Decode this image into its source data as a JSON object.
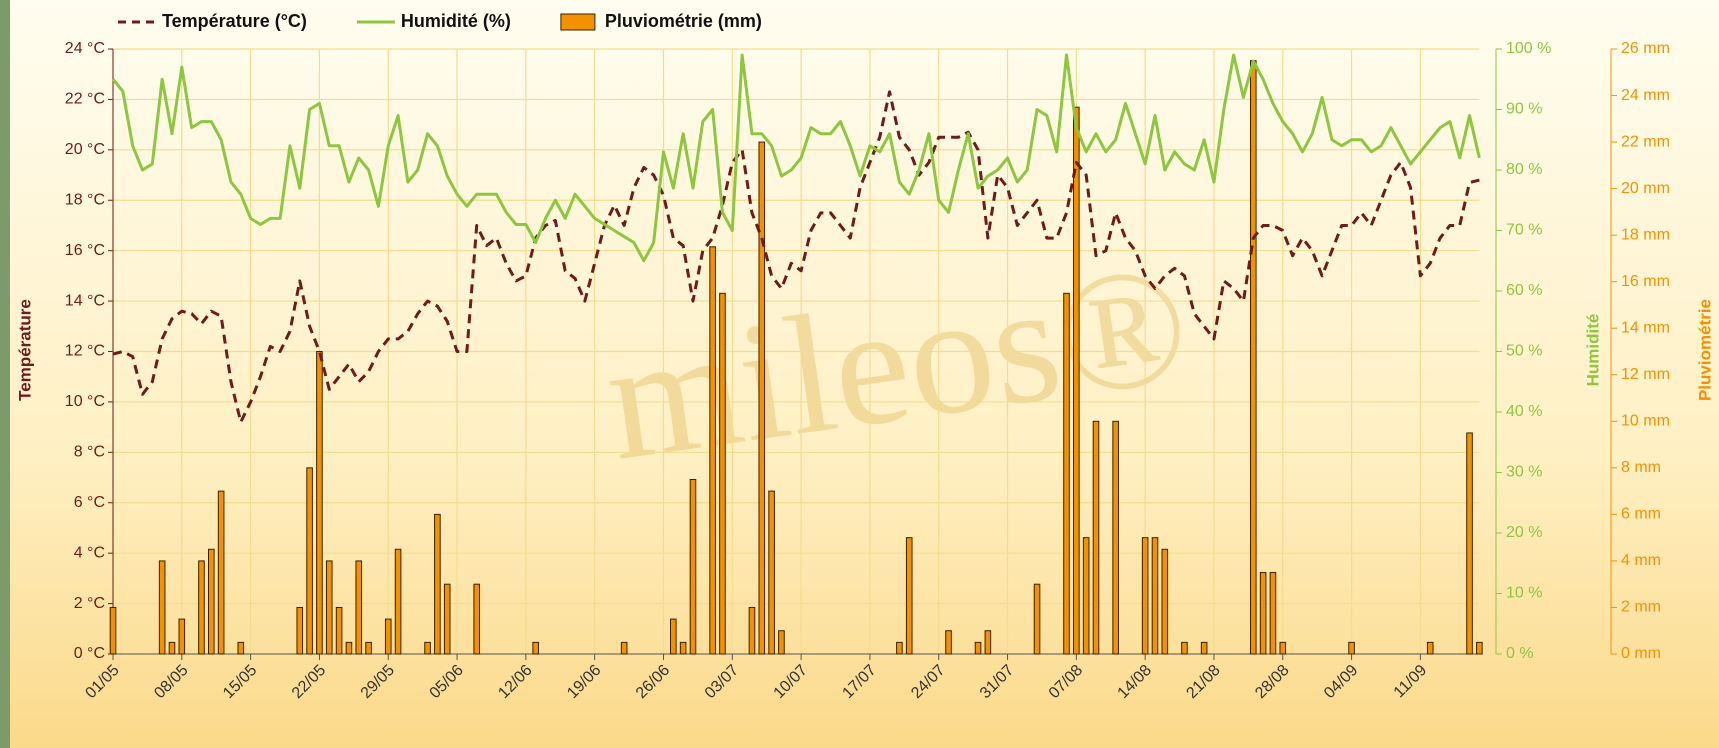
{
  "chart_data": {
    "type": "combo",
    "watermark": "mileos®",
    "ylabel": "Température",
    "y2label": "Humidité",
    "y3label": "Pluviométrie",
    "categories": [
      "01/05",
      null,
      null,
      null,
      null,
      null,
      null,
      "08/05",
      null,
      null,
      null,
      null,
      null,
      null,
      "15/05",
      null,
      null,
      null,
      null,
      null,
      null,
      "22/05",
      null,
      null,
      null,
      null,
      null,
      null,
      "29/05",
      null,
      null,
      null,
      null,
      null,
      null,
      "05/06",
      null,
      null,
      null,
      null,
      null,
      null,
      "12/06",
      null,
      null,
      null,
      null,
      null,
      null,
      "19/06",
      null,
      null,
      null,
      null,
      null,
      null,
      "26/06",
      null,
      null,
      null,
      null,
      null,
      null,
      "03/07",
      null,
      null,
      null,
      null,
      null,
      null,
      "10/07",
      null,
      null,
      null,
      null,
      null,
      null,
      "17/07",
      null,
      null,
      null,
      null,
      null,
      null,
      "24/07",
      null,
      null,
      null,
      null,
      null,
      null,
      "31/07",
      null,
      null,
      null,
      null,
      null,
      null,
      "07/08",
      null,
      null,
      null,
      null,
      null,
      null,
      "14/08",
      null,
      null,
      null,
      null,
      null,
      null,
      "21/08",
      null,
      null,
      null,
      null,
      null,
      null,
      "28/08",
      null,
      null,
      null,
      null,
      null,
      null,
      "04/09",
      null,
      null,
      null,
      null,
      null,
      null,
      "11/09",
      null,
      null,
      null,
      null,
      null,
      null
    ],
    "series": [
      {
        "name": "Température (°C)",
        "kind": "line",
        "dashed": true,
        "axis": "y",
        "color": "#6e1b1b",
        "values": [
          11.9,
          12.0,
          11.8,
          10.3,
          10.8,
          12.5,
          13.3,
          13.6,
          13.5,
          13.1,
          13.6,
          13.4,
          10.8,
          9.2,
          10.0,
          11.0,
          12.2,
          12.0,
          12.8,
          14.8,
          13.0,
          12.0,
          10.5,
          11.0,
          11.5,
          10.8,
          11.2,
          12.0,
          12.5,
          12.5,
          12.8,
          13.5,
          14.0,
          13.8,
          13.2,
          12.0,
          12.0,
          17.0,
          16.2,
          16.5,
          15.5,
          14.8,
          15.0,
          16.5,
          17.0,
          17.2,
          15.2,
          14.9,
          14.0,
          15.5,
          17.0,
          17.8,
          17.0,
          18.5,
          19.3,
          19.0,
          18.2,
          16.5,
          16.2,
          14.0,
          16.0,
          16.5,
          17.8,
          19.5,
          20.0,
          17.5,
          16.5,
          15.0,
          14.5,
          15.5,
          15.2,
          16.8,
          17.5,
          17.5,
          17.0,
          16.5,
          18.5,
          19.5,
          20.5,
          22.3,
          20.5,
          20.0,
          19.0,
          19.5,
          20.5,
          20.5,
          20.5,
          20.7,
          20.0,
          16.5,
          19.0,
          18.5,
          17.0,
          17.5,
          18.0,
          16.5,
          16.5,
          17.5,
          19.5,
          19.0,
          15.8,
          16.0,
          17.5,
          16.5,
          16.0,
          15.0,
          14.5,
          15.0,
          15.3,
          15.0,
          13.5,
          13.0,
          12.5,
          14.8,
          14.5,
          14.0,
          16.5,
          17.0,
          17.0,
          16.8,
          15.8,
          16.5,
          16.0,
          15.0,
          16.0,
          17.0,
          17.0,
          17.5,
          17.0,
          18.0,
          19.0,
          19.5,
          18.5,
          15.0,
          15.5,
          16.5,
          17.0,
          17.0,
          18.7,
          18.8
        ]
      },
      {
        "name": "Humidité (%)",
        "kind": "line",
        "axis": "y2",
        "color": "#8dc63f",
        "values": [
          95,
          93,
          84,
          80,
          81,
          95,
          86,
          97,
          87,
          88,
          88,
          85,
          78,
          76,
          72,
          71,
          72,
          72,
          84,
          77,
          90,
          91,
          84,
          84,
          78,
          82,
          80,
          74,
          84,
          89,
          78,
          80,
          86,
          84,
          79,
          76,
          74,
          76,
          76,
          76,
          73,
          71,
          71,
          68,
          72,
          75,
          72,
          76,
          74,
          72,
          71,
          70,
          69,
          68,
          65,
          68,
          83,
          77,
          86,
          77,
          88,
          90,
          73,
          70,
          99,
          86,
          86,
          84,
          79,
          80,
          82,
          87,
          86,
          86,
          88,
          84,
          79,
          84,
          83,
          86,
          78,
          76,
          80,
          86,
          75,
          73,
          80,
          86,
          77,
          79,
          80,
          82,
          78,
          80,
          90,
          89,
          83,
          99,
          87,
          83,
          86,
          83,
          85,
          91,
          86,
          81,
          89,
          80,
          83,
          81,
          80,
          85,
          78,
          90,
          99,
          92,
          98,
          95,
          91,
          88,
          86,
          83,
          86,
          92,
          85,
          84,
          85,
          85,
          83,
          84,
          87,
          84,
          81,
          83,
          85,
          87,
          88,
          82,
          89,
          82
        ]
      },
      {
        "name": "Pluviométrie (mm)",
        "kind": "bar",
        "axis": "y3",
        "color": "#f39200",
        "values": [
          2,
          0,
          0,
          0,
          0,
          4,
          0.5,
          1.5,
          0,
          4,
          4.5,
          7,
          0,
          0.5,
          0,
          0,
          0,
          0,
          0,
          2,
          8,
          13,
          4,
          2,
          0.5,
          4,
          0.5,
          0,
          1.5,
          4.5,
          0,
          0,
          0.5,
          6,
          3,
          0,
          0,
          3,
          0,
          0,
          0,
          0,
          0,
          0.5,
          0,
          0,
          0,
          0,
          0,
          0,
          0,
          0,
          0.5,
          0,
          0,
          0,
          0,
          1.5,
          0.5,
          7.5,
          0,
          17.5,
          15.5,
          0,
          0,
          2,
          22,
          7,
          1,
          0,
          0,
          0,
          0,
          0,
          0,
          0,
          0,
          0,
          0,
          0,
          0.5,
          5,
          0,
          0,
          0,
          1,
          0,
          0,
          0.5,
          1,
          0,
          0,
          0,
          0,
          3,
          0,
          0,
          15.5,
          23.5,
          5,
          10,
          0,
          10,
          0,
          0,
          5,
          5,
          4.5,
          0,
          0.5,
          0,
          0.5,
          0,
          0,
          0,
          0,
          25.5,
          3.5,
          3.5,
          0.5,
          0,
          0,
          0,
          0,
          0,
          0,
          0.5,
          0,
          0,
          0,
          0,
          0,
          0,
          0,
          0.5,
          0,
          0,
          0,
          9.5,
          0.5
        ]
      }
    ],
    "ylim": [
      0,
      24
    ],
    "yticks": [
      {
        "value": 0,
        "label": "0 °C"
      },
      {
        "value": 2,
        "label": "2 °C"
      },
      {
        "value": 4,
        "label": "4 °C"
      },
      {
        "value": 6,
        "label": "6 °C"
      },
      {
        "value": 8,
        "label": "8 °C"
      },
      {
        "value": 10,
        "label": "10 °C"
      },
      {
        "value": 12,
        "label": "12 °C"
      },
      {
        "value": 14,
        "label": "14 °C"
      },
      {
        "value": 16,
        "label": "16 °C"
      },
      {
        "value": 18,
        "label": "18 °C"
      },
      {
        "value": 20,
        "label": "20 °C"
      },
      {
        "value": 22,
        "label": "22 °C"
      },
      {
        "value": 24,
        "label": "24 °C"
      }
    ],
    "y2lim": [
      0,
      100
    ],
    "y2ticks": [
      {
        "value": 0,
        "label": "0 %"
      },
      {
        "value": 10,
        "label": "10 %"
      },
      {
        "value": 20,
        "label": "20 %"
      },
      {
        "value": 30,
        "label": "30 %"
      },
      {
        "value": 40,
        "label": "40 %"
      },
      {
        "value": 50,
        "label": "50 %"
      },
      {
        "value": 60,
        "label": "60 %"
      },
      {
        "value": 70,
        "label": "70 %"
      },
      {
        "value": 80,
        "label": "80 %"
      },
      {
        "value": 90,
        "label": "90 %"
      },
      {
        "value": 100,
        "label": "100 %"
      }
    ],
    "y3lim": [
      0,
      26
    ],
    "y3ticks": [
      {
        "value": 0,
        "label": "0 mm"
      },
      {
        "value": 2,
        "label": "2 mm"
      },
      {
        "value": 4,
        "label": "4 mm"
      },
      {
        "value": 6,
        "label": "6 mm"
      },
      {
        "value": 8,
        "label": "8 mm"
      },
      {
        "value": 10,
        "label": "10 mm"
      },
      {
        "value": 12,
        "label": "12 mm"
      },
      {
        "value": 14,
        "label": "14 mm"
      },
      {
        "value": 16,
        "label": "16 mm"
      },
      {
        "value": 18,
        "label": "18 mm"
      },
      {
        "value": 20,
        "label": "20 mm"
      },
      {
        "value": 22,
        "label": "22 mm"
      },
      {
        "value": 24,
        "label": "24 mm"
      },
      {
        "value": 26,
        "label": "26 mm"
      }
    ],
    "grid": true
  }
}
